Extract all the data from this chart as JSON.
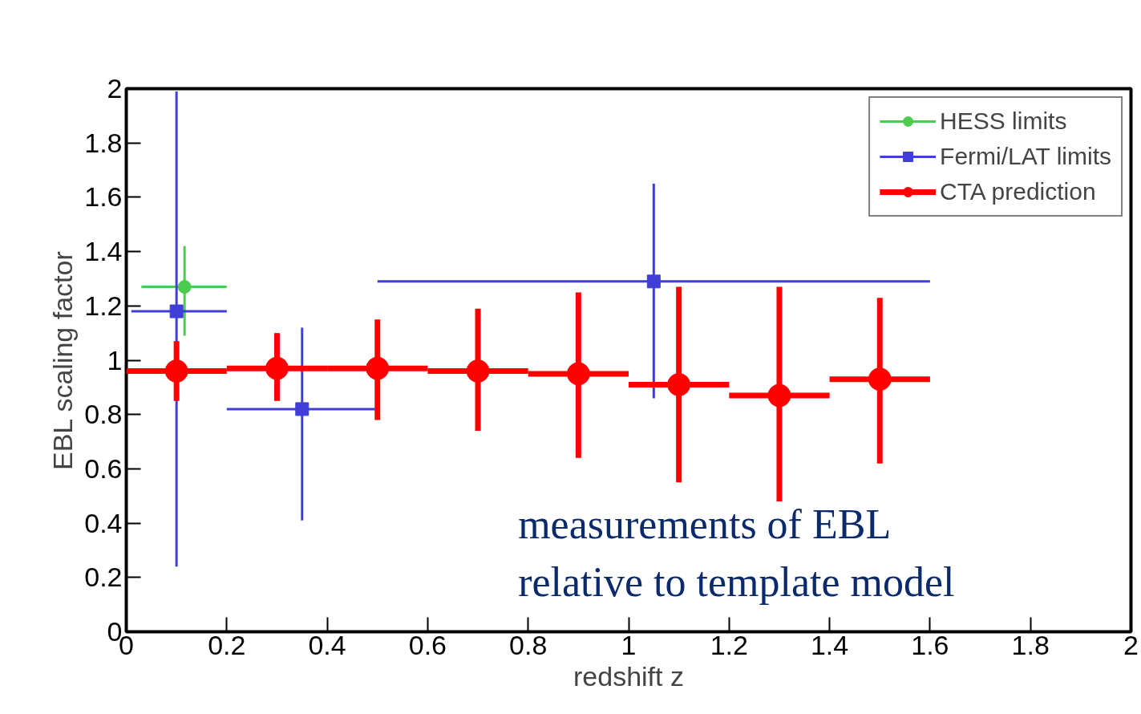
{
  "chart_data": {
    "type": "scatter",
    "xlabel": "redshift z",
    "ylabel": "EBL scaling factor",
    "xlim": [
      0,
      2
    ],
    "ylim": [
      0,
      2
    ],
    "xticks": [
      0,
      0.2,
      0.4,
      0.6,
      0.8,
      1,
      1.2,
      1.4,
      1.6,
      1.8,
      2
    ],
    "yticks": [
      0,
      0.2,
      0.4,
      0.6,
      0.8,
      1,
      1.2,
      1.4,
      1.6,
      1.8,
      2
    ],
    "grid": false,
    "legend": "top right",
    "annotations": [
      "measurements of EBL\nrelative to template model"
    ],
    "series": [
      {
        "name": "HESS limits",
        "color": "#4ccc4c",
        "marker": "circle",
        "x": [
          0.116
        ],
        "values": [
          1.27
        ],
        "errors": [
          [
            1.09,
            1.42
          ]
        ],
        "xerrors": [
          [
            0.03,
            0.2
          ]
        ]
      },
      {
        "name": "Fermi/LAT limits",
        "color": "#3f3fd8",
        "marker": "square",
        "x": [
          0.1,
          0.35,
          1.05
        ],
        "values": [
          1.18,
          0.82,
          1.29
        ],
        "errors": [
          [
            0.24,
            1.99
          ],
          [
            0.41,
            1.12
          ],
          [
            0.86,
            1.65
          ]
        ],
        "xerrors": [
          [
            0.01,
            0.2
          ],
          [
            0.2,
            0.5
          ],
          [
            0.5,
            1.6
          ]
        ]
      },
      {
        "name": "CTA prediction",
        "color": "#ff0000",
        "marker": "circle",
        "x": [
          0.1,
          0.3,
          0.5,
          0.7,
          0.9,
          1.1,
          1.3,
          1.5
        ],
        "values": [
          0.96,
          0.97,
          0.97,
          0.96,
          0.95,
          0.91,
          0.87,
          0.93
        ],
        "errors": [
          [
            0.85,
            1.07
          ],
          [
            0.85,
            1.1
          ],
          [
            0.78,
            1.15
          ],
          [
            0.74,
            1.19
          ],
          [
            0.64,
            1.25
          ],
          [
            0.55,
            1.27
          ],
          [
            0.48,
            1.27
          ],
          [
            0.62,
            1.23
          ]
        ],
        "xerrors": [
          [
            0,
            0.2
          ],
          [
            0.2,
            0.4
          ],
          [
            0.4,
            0.6
          ],
          [
            0.6,
            0.8
          ],
          [
            0.8,
            1.0
          ],
          [
            1.0,
            1.2
          ],
          [
            1.2,
            1.4
          ],
          [
            1.4,
            1.6
          ]
        ]
      }
    ]
  }
}
